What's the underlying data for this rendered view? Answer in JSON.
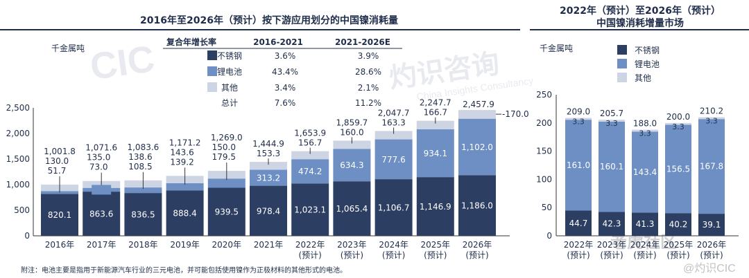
{
  "colors": {
    "stainless": "#2d3e63",
    "battery": "#6d8fc4",
    "other": "#cdd4e4",
    "text": "#1f2d4a",
    "title_bar": "#1f2d4a"
  },
  "watermarks": [
    "CIC",
    "灼识咨询",
    "China Insights Consultancy",
    "老虎社区",
    "@灼识CIC"
  ],
  "left_table": {
    "title": "2016年至2026年（预计）按下游应用划分的中国镍消耗量",
    "unit": "千金属吨",
    "cagr_header": "复合年增长率",
    "col1_header": "2016-2021",
    "col2_header": "2021-2026E",
    "rows": [
      {
        "label": "不锈钢",
        "c1": "3.6%",
        "c2": "3.9%"
      },
      {
        "label": "锂电池",
        "c1": "43.4%",
        "c2": "28.6%"
      },
      {
        "label": "其他",
        "c1": "3.4%",
        "c2": "2.1%"
      },
      {
        "label": "总计",
        "c1": "7.6%",
        "c2": "11.2%"
      }
    ]
  },
  "right_legend": {
    "title_line1": "2022年（预计）至2026年（预计）",
    "title_line2": "中国镍消耗增量市场",
    "unit": "千金属吨",
    "items": [
      "不锈钢",
      "锂电池",
      "其他"
    ]
  },
  "footnote": "附注：电池主要是指用于新能源汽车行业的三元电池，并可能包括使用镍作为正极材料的其他形式的电池。",
  "chart_data": [
    {
      "type": "bar",
      "stacked": true,
      "title": "2016年至2026年（预计）按下游应用划分的中国镍消耗量",
      "ylabel": "千金属吨",
      "ylim": [
        0,
        2500
      ],
      "yticks": [
        "0",
        "500",
        "1,000",
        "1,500",
        "2,000",
        "2,500"
      ],
      "categories": [
        "2016年",
        "2017年",
        "2018年",
        "2019年",
        "2020年",
        "2021年",
        "2022年\n(预计)",
        "2023年\n(预计)",
        "2024年\n(预计)",
        "2025年\n(预计)",
        "2026年\n(预计)"
      ],
      "series": [
        {
          "name": "不锈钢",
          "values": [
            820.1,
            863.6,
            836.5,
            888.4,
            939.5,
            978.4,
            1023.1,
            1065.4,
            1106.7,
            1146.9,
            1186.0
          ],
          "labels": [
            "820.1",
            "863.6",
            "836.5",
            "888.4",
            "939.5",
            "978.4",
            "1,023.1",
            "1,065.4",
            "1,106.7",
            "1,146.9",
            "1,186.0"
          ]
        },
        {
          "name": "锂电池",
          "values": [
            51.7,
            73.0,
            108.5,
            139.2,
            179.5,
            313.2,
            474.2,
            634.3,
            777.6,
            934.1,
            1102.0
          ],
          "labels": [
            "51.7",
            "73.0",
            "108.5",
            "139.2",
            "179.5",
            "313.2",
            "474.2",
            "634.3",
            "777.6",
            "934.1",
            "1,102.0"
          ]
        },
        {
          "name": "其他",
          "values": [
            130.0,
            135.0,
            138.6,
            143.6,
            150.0,
            153.3,
            156.7,
            160.0,
            163.3,
            166.7,
            170.0
          ],
          "labels": [
            "130.0",
            "135.0",
            "138.6",
            "143.6",
            "150.0",
            "153.3",
            "156.7",
            "160.0",
            "163.3",
            "166.7",
            "170.0"
          ]
        }
      ],
      "totals": [
        1001.8,
        1071.6,
        1083.6,
        1171.2,
        1269.0,
        1444.9,
        1653.9,
        1859.7,
        2047.7,
        2247.7,
        2457.9
      ],
      "total_labels": [
        "1,001.8",
        "1,071.6",
        "1,083.6",
        "1,171.2",
        "1,269.0",
        "1,444.9",
        "1,653.9",
        "1,859.7",
        "2,047.7",
        "2,247.7",
        "2,457.9"
      ]
    },
    {
      "type": "bar",
      "stacked": true,
      "title": "2022年（预计）至2026年（预计）中国镍消耗增量市场",
      "ylabel": "千金属吨",
      "ylim": [
        0,
        250
      ],
      "yticks": [
        "0",
        "50",
        "100",
        "150",
        "200",
        "250"
      ],
      "categories": [
        "2022年\n(预计)",
        "2023年\n(预计)",
        "2024年\n(预计)",
        "2025年\n(预计)",
        "2026年\n(预计)"
      ],
      "series": [
        {
          "name": "不锈钢",
          "values": [
            44.7,
            42.3,
            41.3,
            40.2,
            39.1
          ],
          "labels": [
            "44.7",
            "42.3",
            "41.3",
            "40.2",
            "39.1"
          ]
        },
        {
          "name": "锂电池",
          "values": [
            161.0,
            160.1,
            143.4,
            156.5,
            167.8
          ],
          "labels": [
            "161.0",
            "160.1",
            "143.4",
            "156.5",
            "167.8"
          ]
        },
        {
          "name": "其他",
          "values": [
            3.3,
            3.3,
            3.3,
            3.3,
            3.3
          ],
          "labels": [
            "3.3",
            "3.3",
            "3.3",
            "3.3",
            "3.3"
          ]
        }
      ],
      "totals": [
        209.0,
        205.7,
        188.0,
        200.0,
        210.2
      ],
      "total_labels": [
        "209.0",
        "205.7",
        "188.0",
        "200.0",
        "210.2"
      ]
    }
  ]
}
